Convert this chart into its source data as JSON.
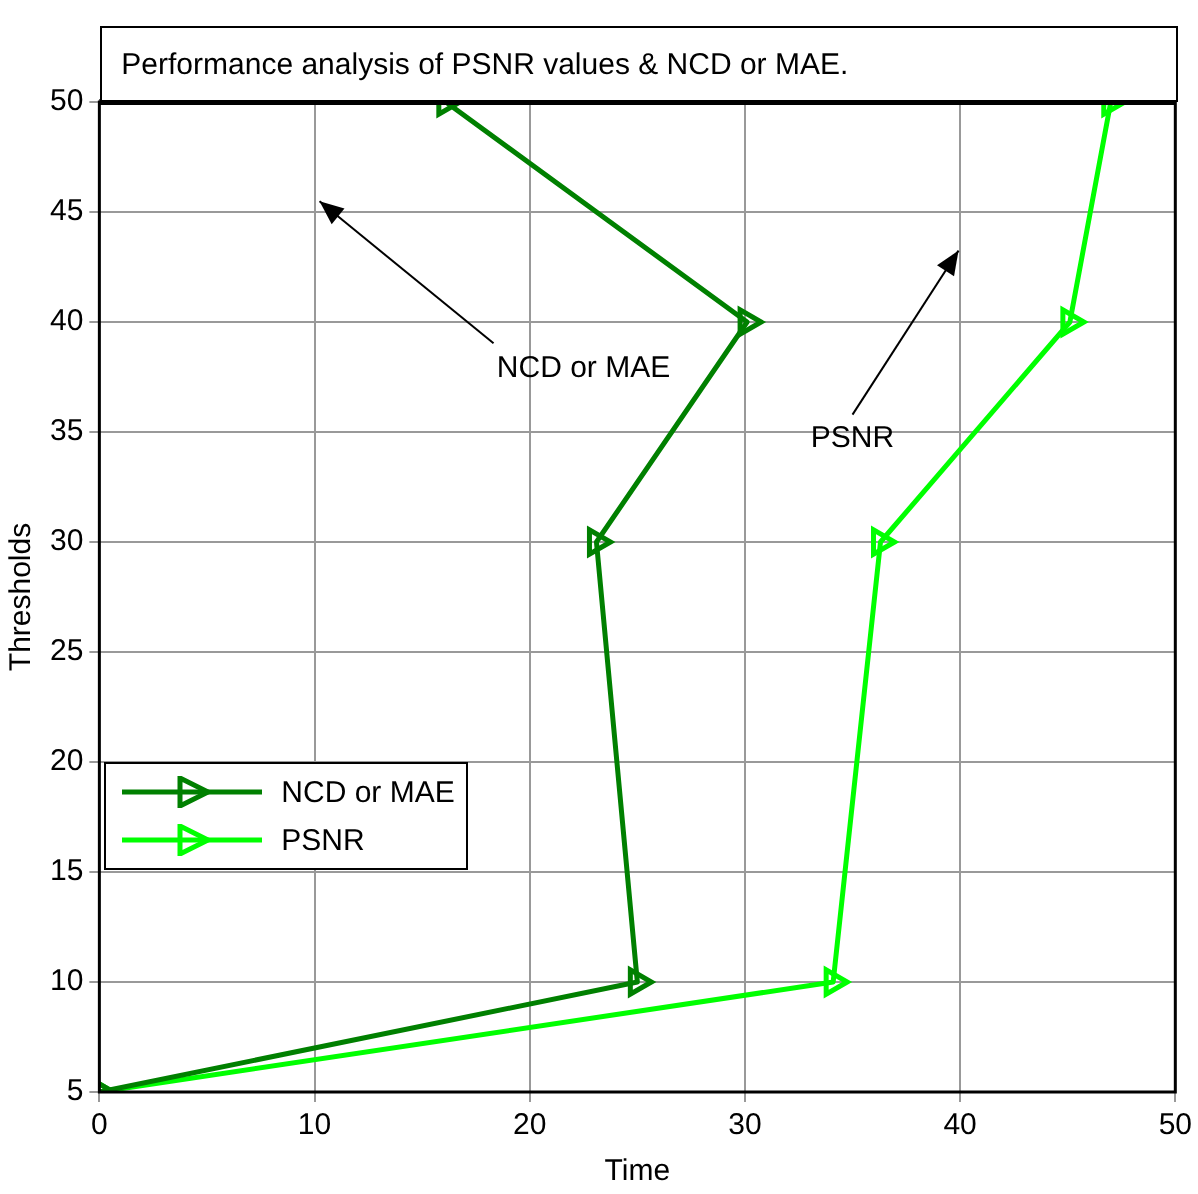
{
  "chart_data": {
    "type": "line",
    "title": "Performance analysis of PSNR values & NCD or MAE.",
    "xlabel": "Time",
    "ylabel": "Thresholds",
    "xlim": [
      0,
      50
    ],
    "xticks": [
      0,
      10,
      20,
      30,
      40,
      50
    ],
    "ylim": [
      5,
      50
    ],
    "yticks": [
      5,
      10,
      15,
      20,
      25,
      30,
      35,
      40,
      45,
      50
    ],
    "grid": true,
    "legend": "left",
    "marker": "triangle",
    "line_style": "solid",
    "annotations": [
      "NCD or MAE",
      "PSNR"
    ],
    "series": [
      {
        "name": "NCD or MAE",
        "color": "#008000",
        "x": [
          0,
          25,
          23.1,
          30.1,
          16.1
        ],
        "values": [
          5,
          10,
          30,
          40,
          50
        ]
      },
      {
        "name": "PSNR",
        "color": "#00ff00",
        "x": [
          0,
          34.1,
          36.3,
          45.1,
          47.0
        ],
        "values": [
          5,
          10,
          30,
          40,
          50
        ]
      }
    ]
  }
}
